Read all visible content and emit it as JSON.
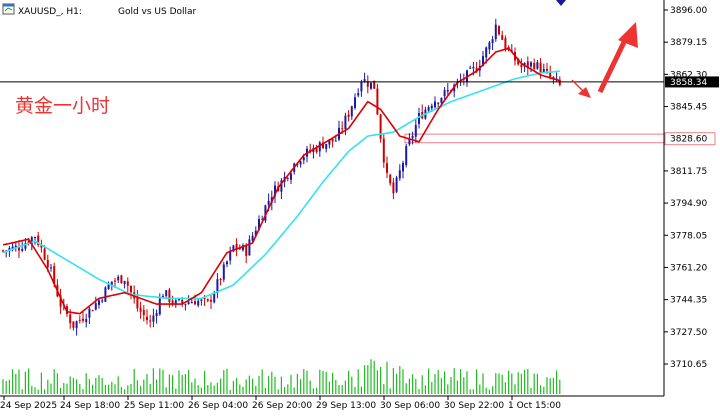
{
  "header": {
    "symbol": "XAUUSD_, H1:",
    "description": "Gold vs US Dollar"
  },
  "annotation": {
    "text": "黄金一小时",
    "color": "#ee3333"
  },
  "colors": {
    "bull": "#1a1aa6",
    "bear": "#cc0000",
    "ma_fast": "#dd0000",
    "ma_slow": "#33e3f0",
    "volume": "#22bb22",
    "arrow": "#ee3333",
    "zone": "#e8808a",
    "price_line": "#000000"
  },
  "icons": {
    "window": "chart-window-icon",
    "corner": "blue-triangle-marker-icon"
  },
  "chart_data": {
    "type": "candlestick",
    "yticks": [
      3896.0,
      3879.15,
      3862.3,
      3845.45,
      3828.6,
      3811.75,
      3794.9,
      3778.05,
      3761.2,
      3744.35,
      3727.5,
      3710.65
    ],
    "yticks_text": [
      "3896.00",
      "3879.15",
      "3862.30",
      "3845.45",
      "3828.60",
      "3811.75",
      "3794.90",
      "3778.05",
      "3761.20",
      "3744.35",
      "3727.50",
      "3710.65"
    ],
    "xticks": [
      "24 Sep 2025",
      "24 Sep 18:00",
      "25 Sep 11:00",
      "26 Sep 04:00",
      "26 Sep 20:00",
      "29 Sep 13:00",
      "30 Sep 06:00",
      "30 Sep 22:00",
      "1 Oct 15:00"
    ],
    "current_price": 3858.34,
    "current_price_text": "3858.34",
    "zone": [
      3826.5,
      3831.0
    ],
    "zone_label": "3828.60",
    "ylim": [
      3701.5,
      3903.0
    ],
    "ma_fast_anchors": [
      [
        0,
        3773
      ],
      [
        8,
        3776
      ],
      [
        14,
        3760
      ],
      [
        20,
        3738
      ],
      [
        24,
        3737
      ],
      [
        30,
        3745
      ],
      [
        38,
        3748
      ],
      [
        48,
        3742
      ],
      [
        56,
        3742
      ],
      [
        62,
        3748
      ],
      [
        70,
        3769
      ],
      [
        78,
        3774
      ],
      [
        86,
        3803
      ],
      [
        94,
        3820
      ],
      [
        100,
        3826
      ],
      [
        108,
        3834
      ],
      [
        114,
        3848
      ],
      [
        118,
        3844
      ],
      [
        124,
        3830
      ],
      [
        130,
        3827
      ],
      [
        136,
        3844
      ],
      [
        142,
        3858
      ],
      [
        148,
        3864
      ],
      [
        154,
        3874
      ],
      [
        158,
        3876
      ],
      [
        162,
        3868
      ],
      [
        168,
        3862
      ],
      [
        174,
        3859
      ]
    ],
    "ma_slow_anchors": [
      [
        0,
        3769
      ],
      [
        10,
        3775
      ],
      [
        20,
        3765
      ],
      [
        30,
        3755
      ],
      [
        40,
        3747
      ],
      [
        52,
        3745
      ],
      [
        62,
        3745
      ],
      [
        72,
        3752
      ],
      [
        82,
        3768
      ],
      [
        92,
        3788
      ],
      [
        100,
        3806
      ],
      [
        108,
        3822
      ],
      [
        114,
        3830
      ],
      [
        122,
        3832
      ],
      [
        130,
        3840
      ],
      [
        140,
        3848
      ],
      [
        150,
        3854
      ],
      [
        160,
        3860
      ],
      [
        168,
        3863
      ],
      [
        174,
        3864
      ]
    ],
    "close_anchors": [
      [
        0,
        3770
      ],
      [
        5,
        3772
      ],
      [
        10,
        3778
      ],
      [
        14,
        3764
      ],
      [
        18,
        3742
      ],
      [
        22,
        3731
      ],
      [
        26,
        3737
      ],
      [
        30,
        3744
      ],
      [
        34,
        3754
      ],
      [
        38,
        3756
      ],
      [
        42,
        3740
      ],
      [
        46,
        3732
      ],
      [
        50,
        3748
      ],
      [
        54,
        3742
      ],
      [
        60,
        3744
      ],
      [
        64,
        3742
      ],
      [
        68,
        3756
      ],
      [
        72,
        3772
      ],
      [
        76,
        3770
      ],
      [
        80,
        3786
      ],
      [
        84,
        3800
      ],
      [
        88,
        3808
      ],
      [
        92,
        3818
      ],
      [
        96,
        3822
      ],
      [
        100,
        3826
      ],
      [
        104,
        3828
      ],
      [
        108,
        3842
      ],
      [
        112,
        3860
      ],
      [
        116,
        3856
      ],
      [
        118,
        3830
      ],
      [
        120,
        3808
      ],
      [
        122,
        3800
      ],
      [
        126,
        3822
      ],
      [
        130,
        3840
      ],
      [
        134,
        3848
      ],
      [
        138,
        3852
      ],
      [
        144,
        3860
      ],
      [
        148,
        3866
      ],
      [
        152,
        3878
      ],
      [
        154,
        3888
      ],
      [
        158,
        3874
      ],
      [
        162,
        3866
      ],
      [
        166,
        3868
      ],
      [
        170,
        3862
      ],
      [
        174,
        3856
      ]
    ]
  }
}
